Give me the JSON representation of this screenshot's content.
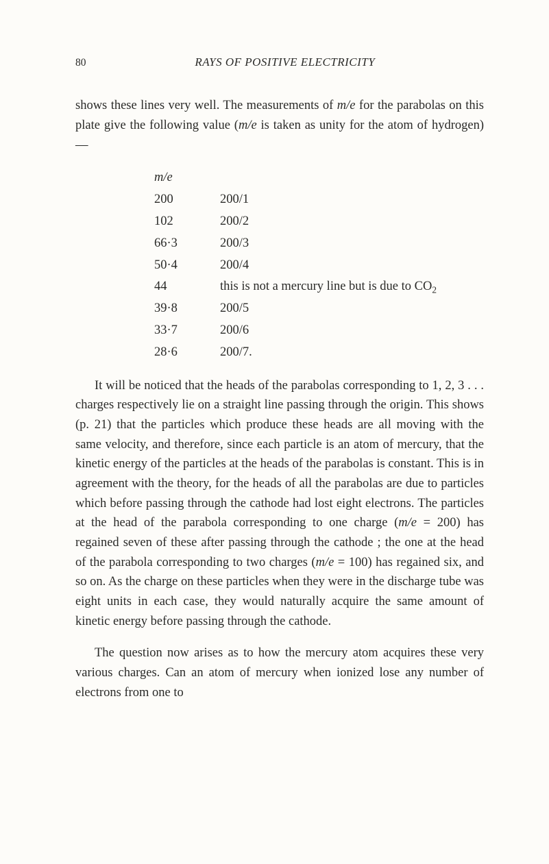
{
  "header": {
    "page_number": "80",
    "running_title": "RAYS OF POSITIVE ELECTRICITY"
  },
  "para1": {
    "t1": "shows these lines very well. The measurements of ",
    "m_e_1": "m/e",
    "t2": " for the parabolas on this plate give the following value (",
    "m_e_2": "m/e",
    "t3": " is taken as unity for the atom of hydrogen) —"
  },
  "table": {
    "header_label": "m/e",
    "rows": [
      {
        "left": "200",
        "right": "200/1"
      },
      {
        "left": "102",
        "right": "200/2"
      },
      {
        "left": "66·3",
        "right": "200/3"
      },
      {
        "left": "50·4",
        "right": "200/4"
      },
      {
        "left": "44",
        "right_prefix": "this is not a mercury line but is due to CO",
        "right_sub": "2"
      },
      {
        "left": "39·8",
        "right": "200/5"
      },
      {
        "left": "33·7",
        "right": "200/6"
      },
      {
        "left": "28·6",
        "right": "200/7."
      }
    ]
  },
  "para2": {
    "t1": "It will be noticed that the heads of the parabolas corre­sponding to 1, 2, 3 . . . charges respectively lie on a straight line passing through the origin. This shows (p. 21) that the particles which produce these heads are all moving with the same velocity, and therefore, since each particle is an atom of mercury, that the kinetic energy of the particles at the heads of the parabolas is constant. This is in agreement with the theory, for the heads of all the parabolas are due to particles which before passing through the cathode had lost eight electrons. The particles at the head of the parabola corre­sponding to one charge (",
    "m_e_1": "m/e",
    "t2": " = 200) has regained seven of these after passing through the cathode ; the one at the head of the parabola corresponding to two charges (",
    "m_e_2": "m/e",
    "t3": " = 100) has regained six, and so on. As the charge on these particles when they were in the discharge tube was eight units in each case, they would naturally acquire the same amount of kinetic energy before passing through the cathode."
  },
  "para3": {
    "t1": "The question now arises as to how the mercury atom acquires these very various charges. Can an atom of mercury when ionized lose any number of electrons from one to"
  }
}
